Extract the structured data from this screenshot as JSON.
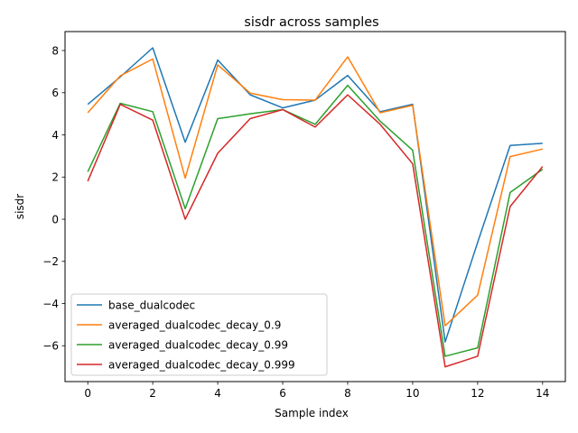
{
  "chart_data": {
    "type": "line",
    "title": "sisdr across samples",
    "xlabel": "Sample index",
    "ylabel": "sisdr",
    "x": [
      0,
      1,
      2,
      3,
      4,
      5,
      6,
      7,
      8,
      9,
      10,
      11,
      12,
      13,
      14
    ],
    "xlim": [
      -0.7,
      14.7
    ],
    "ylim": [
      -7.7,
      8.9
    ],
    "xticks": [
      0,
      2,
      4,
      6,
      8,
      10,
      12,
      14
    ],
    "yticks": [
      -6,
      -4,
      -2,
      0,
      2,
      4,
      6,
      8
    ],
    "xtick_labels": [
      "0",
      "2",
      "4",
      "6",
      "8",
      "10",
      "12",
      "14"
    ],
    "ytick_labels": [
      "−6",
      "−4",
      "−2",
      "0",
      "2",
      "4",
      "6",
      "8"
    ],
    "grid": false,
    "legend_position": "lower-left",
    "series": [
      {
        "name": "base_dualcodec",
        "color": "#1f77b4",
        "values": [
          5.45,
          6.75,
          8.13,
          3.65,
          7.55,
          5.9,
          5.28,
          5.65,
          6.82,
          5.1,
          5.45,
          -5.82,
          -1.1,
          3.5,
          3.6
        ]
      },
      {
        "name": "averaged_dualcodec_decay_0.9",
        "color": "#ff7f0e",
        "values": [
          5.05,
          6.8,
          7.6,
          1.95,
          7.32,
          5.98,
          5.67,
          5.65,
          7.7,
          5.05,
          5.4,
          -5.05,
          -3.6,
          2.97,
          3.33
        ]
      },
      {
        "name": "averaged_dualcodec_decay_0.99",
        "color": "#2ca02c",
        "values": [
          2.25,
          5.5,
          5.1,
          0.5,
          4.77,
          5.0,
          5.2,
          4.5,
          6.35,
          4.65,
          3.27,
          -6.5,
          -6.1,
          1.27,
          2.37
        ]
      },
      {
        "name": "averaged_dualcodec_decay_0.999",
        "color": "#d62728",
        "values": [
          1.8,
          5.45,
          4.7,
          0.0,
          3.13,
          4.77,
          5.2,
          4.37,
          5.9,
          4.5,
          2.63,
          -7.0,
          -6.5,
          0.6,
          2.5
        ]
      }
    ]
  }
}
